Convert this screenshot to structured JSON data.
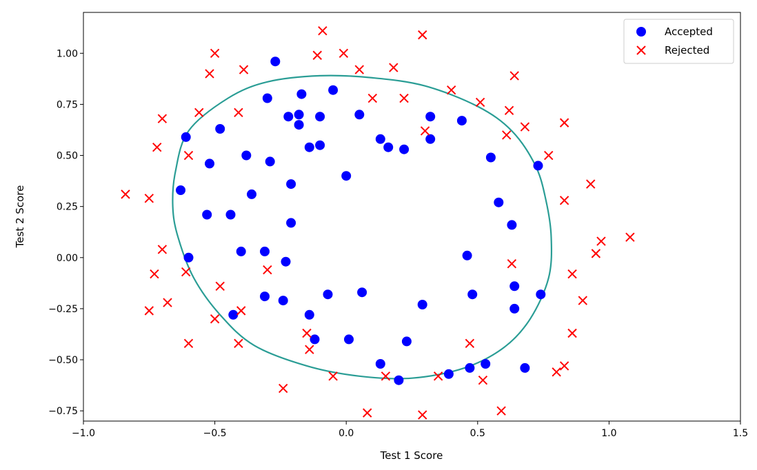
{
  "chart_data": {
    "type": "scatter",
    "title": "",
    "xlabel": "Test 1 Score",
    "ylabel": "Test 2 Score",
    "xlim": [
      -1.0,
      1.5
    ],
    "ylim": [
      -0.8,
      1.2
    ],
    "xticks": [
      "−1.0",
      "−0.5",
      "0.0",
      "0.5",
      "1.0",
      "1.5"
    ],
    "xtick_values": [
      -1.0,
      -0.5,
      0.0,
      0.5,
      1.0,
      1.5
    ],
    "yticks": [
      "−0.75",
      "−0.50",
      "−0.25",
      "0.00",
      "0.25",
      "0.50",
      "0.75",
      "1.00"
    ],
    "ytick_values": [
      -0.75,
      -0.5,
      -0.25,
      0.0,
      0.25,
      0.5,
      0.75,
      1.0
    ],
    "grid": false,
    "legend_position": "top-right",
    "colors": {
      "accepted": "#0000ff",
      "rejected": "#ff0000",
      "boundary": "#2a9d95"
    },
    "series": [
      {
        "name": "Accepted",
        "marker": "circle",
        "points": [
          [
            -0.27,
            0.96
          ],
          [
            -0.3,
            0.78
          ],
          [
            -0.17,
            0.8
          ],
          [
            -0.05,
            0.82
          ],
          [
            -0.22,
            0.69
          ],
          [
            -0.18,
            0.7
          ],
          [
            -0.1,
            0.69
          ],
          [
            -0.18,
            0.65
          ],
          [
            -0.48,
            0.63
          ],
          [
            0.05,
            0.7
          ],
          [
            0.32,
            0.69
          ],
          [
            0.44,
            0.67
          ],
          [
            -0.61,
            0.59
          ],
          [
            0.13,
            0.58
          ],
          [
            0.32,
            0.58
          ],
          [
            -0.14,
            0.54
          ],
          [
            -0.1,
            0.55
          ],
          [
            0.16,
            0.54
          ],
          [
            0.22,
            0.53
          ],
          [
            -0.52,
            0.46
          ],
          [
            -0.38,
            0.5
          ],
          [
            -0.29,
            0.47
          ],
          [
            0.55,
            0.49
          ],
          [
            0.73,
            0.45
          ],
          [
            0.0,
            0.4
          ],
          [
            -0.21,
            0.36
          ],
          [
            -0.63,
            0.33
          ],
          [
            -0.36,
            0.31
          ],
          [
            0.58,
            0.27
          ],
          [
            -0.53,
            0.21
          ],
          [
            -0.44,
            0.21
          ],
          [
            -0.21,
            0.17
          ],
          [
            0.63,
            0.16
          ],
          [
            -0.4,
            0.03
          ],
          [
            -0.31,
            0.03
          ],
          [
            -0.6,
            0.0
          ],
          [
            0.46,
            0.01
          ],
          [
            -0.23,
            -0.02
          ],
          [
            0.64,
            -0.14
          ],
          [
            0.06,
            -0.17
          ],
          [
            -0.07,
            -0.18
          ],
          [
            0.48,
            -0.18
          ],
          [
            0.74,
            -0.18
          ],
          [
            -0.31,
            -0.19
          ],
          [
            -0.24,
            -0.21
          ],
          [
            0.29,
            -0.23
          ],
          [
            0.64,
            -0.25
          ],
          [
            -0.43,
            -0.28
          ],
          [
            -0.14,
            -0.28
          ],
          [
            -0.12,
            -0.4
          ],
          [
            0.01,
            -0.4
          ],
          [
            0.23,
            -0.41
          ],
          [
            0.13,
            -0.52
          ],
          [
            0.53,
            -0.52
          ],
          [
            0.47,
            -0.54
          ],
          [
            0.68,
            -0.54
          ],
          [
            0.39,
            -0.57
          ],
          [
            0.2,
            -0.6
          ]
        ]
      },
      {
        "name": "Rejected",
        "marker": "x",
        "points": [
          [
            -0.09,
            1.11
          ],
          [
            0.29,
            1.09
          ],
          [
            -0.5,
            1.0
          ],
          [
            -0.11,
            0.99
          ],
          [
            -0.01,
            1.0
          ],
          [
            -0.52,
            0.9
          ],
          [
            -0.39,
            0.92
          ],
          [
            0.05,
            0.92
          ],
          [
            0.18,
            0.93
          ],
          [
            0.64,
            0.89
          ],
          [
            0.4,
            0.82
          ],
          [
            0.1,
            0.78
          ],
          [
            0.22,
            0.78
          ],
          [
            0.51,
            0.76
          ],
          [
            -0.56,
            0.71
          ],
          [
            -0.41,
            0.71
          ],
          [
            0.62,
            0.72
          ],
          [
            -0.7,
            0.68
          ],
          [
            0.68,
            0.64
          ],
          [
            0.83,
            0.66
          ],
          [
            0.3,
            0.62
          ],
          [
            0.61,
            0.6
          ],
          [
            -0.72,
            0.54
          ],
          [
            -0.6,
            0.5
          ],
          [
            0.77,
            0.5
          ],
          [
            0.93,
            0.36
          ],
          [
            -0.84,
            0.31
          ],
          [
            -0.75,
            0.29
          ],
          [
            0.83,
            0.28
          ],
          [
            1.08,
            0.1
          ],
          [
            0.97,
            0.08
          ],
          [
            0.95,
            0.02
          ],
          [
            -0.7,
            0.04
          ],
          [
            0.63,
            -0.03
          ],
          [
            -0.3,
            -0.06
          ],
          [
            -0.61,
            -0.07
          ],
          [
            -0.73,
            -0.08
          ],
          [
            0.86,
            -0.08
          ],
          [
            -0.48,
            -0.14
          ],
          [
            0.9,
            -0.21
          ],
          [
            -0.68,
            -0.22
          ],
          [
            -0.4,
            -0.26
          ],
          [
            -0.75,
            -0.26
          ],
          [
            -0.5,
            -0.3
          ],
          [
            -0.15,
            -0.37
          ],
          [
            0.86,
            -0.37
          ],
          [
            -0.6,
            -0.42
          ],
          [
            -0.41,
            -0.42
          ],
          [
            0.47,
            -0.42
          ],
          [
            -0.14,
            -0.45
          ],
          [
            -0.05,
            -0.58
          ],
          [
            0.15,
            -0.58
          ],
          [
            0.35,
            -0.58
          ],
          [
            0.52,
            -0.6
          ],
          [
            0.83,
            -0.53
          ],
          [
            0.8,
            -0.56
          ],
          [
            -0.24,
            -0.64
          ],
          [
            0.08,
            -0.76
          ],
          [
            0.29,
            -0.77
          ],
          [
            0.59,
            -0.75
          ]
        ]
      }
    ],
    "decision_boundary": {
      "shape": "closed curve",
      "points": [
        [
          -0.65,
          0.42
        ],
        [
          -0.6,
          0.62
        ],
        [
          -0.45,
          0.78
        ],
        [
          -0.3,
          0.86
        ],
        [
          -0.1,
          0.89
        ],
        [
          0.1,
          0.88
        ],
        [
          0.3,
          0.84
        ],
        [
          0.5,
          0.74
        ],
        [
          0.63,
          0.62
        ],
        [
          0.72,
          0.45
        ],
        [
          0.76,
          0.28
        ],
        [
          0.78,
          0.1
        ],
        [
          0.77,
          -0.1
        ],
        [
          0.7,
          -0.3
        ],
        [
          0.6,
          -0.44
        ],
        [
          0.45,
          -0.54
        ],
        [
          0.25,
          -0.59
        ],
        [
          0.05,
          -0.58
        ],
        [
          -0.15,
          -0.53
        ],
        [
          -0.35,
          -0.43
        ],
        [
          -0.48,
          -0.28
        ],
        [
          -0.58,
          -0.1
        ],
        [
          -0.64,
          0.1
        ],
        [
          -0.66,
          0.25
        ]
      ]
    }
  }
}
